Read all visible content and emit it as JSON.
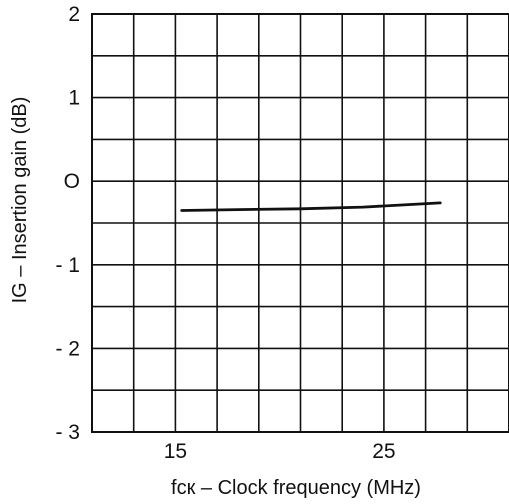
{
  "chart_data": {
    "type": "line",
    "title": "",
    "xlabel": "fcк – Clock frequency (MHz)",
    "ylabel": "IG – Insertion gain (dB)",
    "xlim": [
      11,
      31
    ],
    "ylim": [
      -3,
      2
    ],
    "xticks": [
      15,
      25
    ],
    "yticks": [
      {
        "value": 2,
        "label": "2"
      },
      {
        "value": 1,
        "label": "1"
      },
      {
        "value": 0,
        "label": "O"
      },
      {
        "value": -1,
        "label": "- 1"
      },
      {
        "value": -2,
        "label": "- 2"
      },
      {
        "value": -3,
        "label": "- 3"
      }
    ],
    "grid": true,
    "series": [
      {
        "x": [
          15.3,
          18,
          21,
          24,
          27.7
        ],
        "y": [
          -0.35,
          -0.34,
          -0.33,
          -0.31,
          -0.26
        ]
      }
    ]
  }
}
